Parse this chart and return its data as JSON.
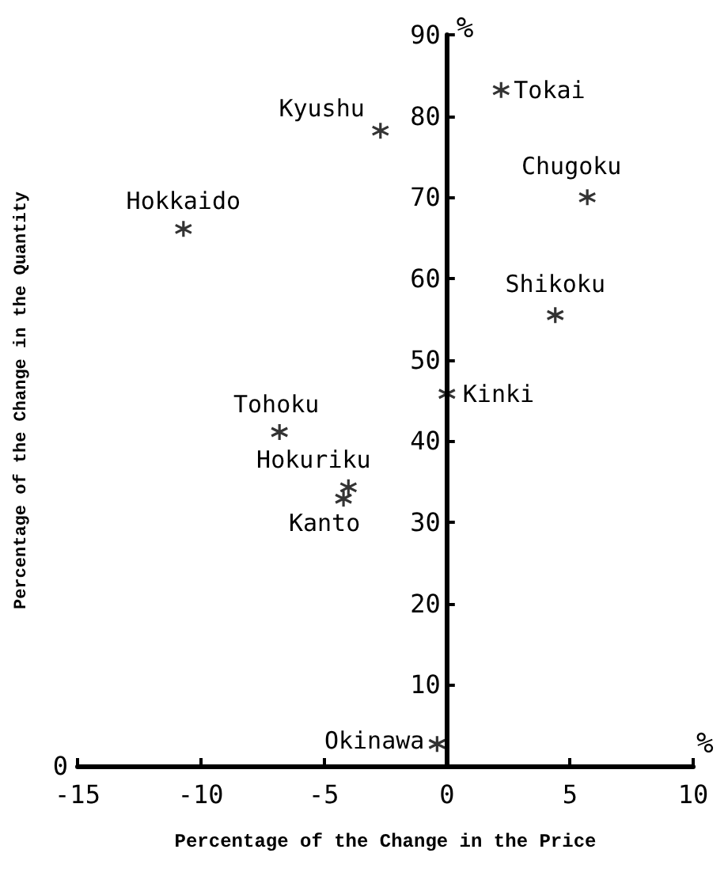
{
  "chart_data": {
    "type": "scatter",
    "xlabel": "Percentage of the Change in the Price",
    "ylabel": "Percentage of the Change in the Quantity",
    "x": [
      2.2,
      -2.7,
      -10.7,
      5.7,
      4.4,
      0,
      -6.8,
      -4.0,
      -4.2,
      -0.4
    ],
    "series": [
      {
        "color": "#000000",
        "values": [
          83.2,
          78.2,
          66.1,
          70.0,
          55.5,
          45.8,
          41.1,
          34.3,
          32.9,
          2.7
        ]
      }
    ],
    "annotations": [
      {
        "text": "Tokai",
        "x": 2.2,
        "y": 83.2
      },
      {
        "text": "Kyushu",
        "x": -2.7,
        "y": 78.2
      },
      {
        "text": "Hokkaido",
        "x": -10.7,
        "y": 66.1
      },
      {
        "text": "Chugoku",
        "x": 5.7,
        "y": 70.0
      },
      {
        "text": "Shikoku",
        "x": 4.4,
        "y": 55.5
      },
      {
        "text": "Kinki",
        "x": 0,
        "y": 45.8
      },
      {
        "text": "Tohoku",
        "x": -6.8,
        "y": 41.1
      },
      {
        "text": "Hokuriku",
        "x": -4.0,
        "y": 34.3
      },
      {
        "text": "Kanto",
        "x": -4.2,
        "y": 32.9
      },
      {
        "text": "Okinawa",
        "x": -0.4,
        "y": 2.7
      },
      "%",
      "%",
      "0"
    ],
    "xlim": [
      -15,
      10
    ],
    "xticks": [
      -15,
      -10,
      -5,
      0,
      5,
      10
    ],
    "ylim": [
      0,
      90
    ],
    "yticks": [
      10,
      20,
      30,
      40,
      50,
      60,
      70,
      80,
      90
    ],
    "marker": "cross"
  }
}
